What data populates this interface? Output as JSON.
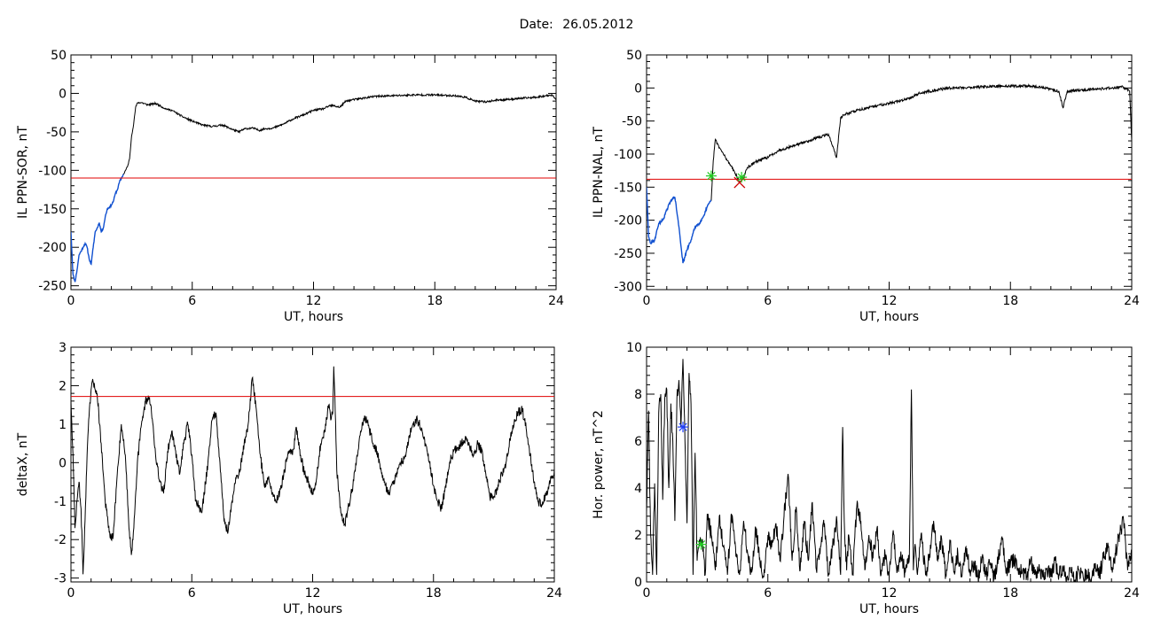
{
  "title": {
    "label": "Date:",
    "value": "26.05.2012"
  },
  "colors": {
    "main": "#000000",
    "early": "#1050d0",
    "threshold": "#e00000",
    "marker_green": "#22cc22",
    "marker_red": "#cc0000",
    "marker_blue": "#2040ff"
  },
  "chart_data": [
    {
      "id": "sor",
      "type": "line",
      "xlabel": "UT, hours",
      "ylabel": "IL PPN-SOR, nT",
      "xlim": [
        0,
        24
      ],
      "ylim": [
        -255,
        50
      ],
      "xticks": [
        "0",
        "6",
        "12",
        "18",
        "24"
      ],
      "yticks": [
        "50",
        "0",
        "-50",
        "-100",
        "-150",
        "-200",
        "-250"
      ],
      "threshold": -110,
      "highlight_until": 2.6,
      "noise": 1.2,
      "noise_seed": 11,
      "series": [
        {
          "x": [
            0,
            0.1,
            0.2,
            0.3,
            0.4,
            0.5,
            0.6,
            0.7,
            0.8,
            0.9,
            1.0,
            1.1,
            1.2,
            1.3,
            1.4,
            1.5,
            1.6,
            1.7,
            1.8,
            1.9,
            2.0,
            2.1,
            2.2,
            2.3,
            2.4,
            2.5,
            2.6,
            2.7,
            2.8,
            2.9,
            3.0,
            3.1,
            3.2,
            3.3,
            3.5,
            3.8,
            4.0,
            4.2,
            4.4,
            4.6,
            4.8,
            5.0,
            5.5,
            6.0,
            6.5,
            7.0,
            7.5,
            8.0,
            8.3,
            8.6,
            9.0,
            9.3,
            9.6,
            10.0,
            10.5,
            11.0,
            11.5,
            12.0,
            12.5,
            12.8,
            13.0,
            13.3,
            13.6,
            14.0,
            14.5,
            15.0,
            16.0,
            17.0,
            18.0,
            19.0,
            19.5,
            20.0,
            20.5,
            21.0,
            22.0,
            23.0,
            23.5,
            23.8,
            24.0
          ],
          "y": [
            -180,
            -235,
            -245,
            -230,
            -210,
            -205,
            -200,
            -195,
            -200,
            -215,
            -222,
            -200,
            -180,
            -175,
            -168,
            -180,
            -175,
            -160,
            -150,
            -148,
            -145,
            -140,
            -130,
            -125,
            -115,
            -110,
            -105,
            -100,
            -95,
            -85,
            -55,
            -40,
            -18,
            -12,
            -12,
            -15,
            -14,
            -13,
            -16,
            -19,
            -21,
            -22,
            -30,
            -36,
            -41,
            -43,
            -41,
            -47,
            -50,
            -46,
            -45,
            -48,
            -46,
            -45,
            -40,
            -33,
            -28,
            -22,
            -20,
            -16,
            -16,
            -18,
            -10,
            -8,
            -6,
            -4,
            -3,
            -2,
            -2,
            -3,
            -5,
            -10,
            -11,
            -9,
            -7,
            -5,
            -3,
            -2,
            -8
          ]
        }
      ]
    },
    {
      "id": "nal",
      "type": "line",
      "xlabel": "UT, hours",
      "ylabel": "IL PPN-NAL, nT",
      "xlim": [
        0,
        24
      ],
      "ylim": [
        -305,
        50
      ],
      "xticks": [
        "0",
        "6",
        "12",
        "18",
        "24"
      ],
      "yticks": [
        "50",
        "0",
        "-50",
        "-100",
        "-150",
        "-200",
        "-250",
        "-300"
      ],
      "threshold": -138,
      "highlight_until": 3.2,
      "noise": 2.0,
      "noise_seed": 29,
      "markers": [
        {
          "x": 3.2,
          "y": -133,
          "symbol": "asterisk",
          "color": "#22cc22"
        },
        {
          "x": 4.6,
          "y": -143,
          "symbol": "cross",
          "color": "#cc0000"
        },
        {
          "x": 4.7,
          "y": -135,
          "symbol": "asterisk",
          "color": "#22cc22"
        }
      ],
      "series": [
        {
          "x": [
            0,
            0.1,
            0.2,
            0.4,
            0.6,
            0.8,
            1.0,
            1.2,
            1.4,
            1.6,
            1.8,
            2.0,
            2.2,
            2.4,
            2.6,
            2.8,
            3.0,
            3.2,
            3.3,
            3.4,
            3.6,
            3.8,
            4.0,
            4.2,
            4.4,
            4.6,
            4.8,
            5.0,
            5.5,
            6.0,
            6.5,
            7.0,
            7.5,
            8.0,
            8.5,
            9.0,
            9.4,
            9.6,
            9.8,
            10.0,
            10.5,
            11.0,
            11.5,
            12.0,
            12.5,
            13.0,
            13.5,
            14.0,
            14.5,
            15.0,
            16.0,
            17.0,
            18.0,
            19.0,
            19.5,
            20.0,
            20.4,
            20.6,
            20.8,
            21.0,
            22.0,
            23.0,
            23.5,
            23.9,
            24.0
          ],
          "y": [
            -150,
            -225,
            -235,
            -230,
            -205,
            -200,
            -185,
            -170,
            -165,
            -210,
            -265,
            -245,
            -230,
            -210,
            -205,
            -195,
            -180,
            -170,
            -110,
            -78,
            -90,
            -100,
            -110,
            -118,
            -130,
            -143,
            -135,
            -120,
            -110,
            -105,
            -95,
            -90,
            -85,
            -80,
            -75,
            -70,
            -105,
            -45,
            -40,
            -38,
            -33,
            -30,
            -26,
            -23,
            -20,
            -15,
            -8,
            -5,
            -2,
            0,
            1,
            2,
            3,
            3,
            1,
            -2,
            -5,
            -30,
            -6,
            -4,
            -2,
            0,
            2,
            -5,
            -80
          ]
        }
      ]
    },
    {
      "id": "deltax",
      "type": "line",
      "xlabel": "UT, hours",
      "ylabel": "deltaX, nT",
      "xlim": [
        0,
        24
      ],
      "ylim": [
        -3.1,
        3.0
      ],
      "xticks": [
        "0",
        "6",
        "12",
        "18",
        "24"
      ],
      "yticks": [
        "3",
        "2",
        "1",
        "0",
        "-1",
        "-2",
        "-3"
      ],
      "threshold": 1.72,
      "noise": 0.12,
      "noise_seed": 47,
      "series": [
        {
          "x": [
            0,
            0.1,
            0.2,
            0.3,
            0.4,
            0.5,
            0.6,
            0.7,
            0.8,
            0.9,
            1.0,
            1.1,
            1.3,
            1.5,
            1.7,
            1.9,
            2.0,
            2.1,
            2.3,
            2.5,
            2.7,
            2.9,
            3.0,
            3.1,
            3.3,
            3.5,
            3.7,
            3.9,
            4.0,
            4.1,
            4.2,
            4.4,
            4.6,
            4.8,
            5.0,
            5.2,
            5.4,
            5.6,
            5.8,
            6.0,
            6.2,
            6.5,
            6.8,
            7.0,
            7.2,
            7.4,
            7.6,
            7.8,
            8.0,
            8.2,
            8.4,
            8.6,
            8.8,
            9.0,
            9.2,
            9.4,
            9.6,
            9.8,
            10.0,
            10.2,
            10.4,
            10.6,
            10.8,
            11.0,
            11.2,
            11.4,
            11.6,
            11.8,
            12.0,
            12.2,
            12.4,
            12.6,
            12.8,
            12.9,
            13.0,
            13.05,
            13.1,
            13.2,
            13.4,
            13.6,
            13.8,
            14.0,
            14.2,
            14.4,
            14.6,
            14.8,
            15.0,
            15.2,
            15.4,
            15.6,
            15.8,
            16.0,
            16.2,
            16.4,
            16.6,
            16.8,
            17.0,
            17.2,
            17.4,
            17.6,
            17.8,
            18.0,
            18.2,
            18.4,
            18.6,
            18.8,
            19.0,
            19.2,
            19.4,
            19.6,
            19.8,
            20.0,
            20.2,
            20.4,
            20.6,
            20.8,
            21.0,
            21.2,
            21.4,
            21.6,
            21.8,
            22.0,
            22.2,
            22.4,
            22.6,
            22.8,
            23.0,
            23.2,
            23.4,
            23.6,
            23.8,
            24.0
          ],
          "y": [
            1.6,
            0.2,
            -1.7,
            -1.0,
            -0.5,
            -1.2,
            -2.9,
            -1.5,
            0.2,
            1.2,
            1.9,
            2.1,
            1.8,
            0.5,
            -1.0,
            -1.8,
            -2.0,
            -1.9,
            -0.3,
            1.0,
            0.2,
            -1.8,
            -2.4,
            -1.8,
            0.0,
            1.0,
            1.6,
            1.7,
            1.3,
            0.8,
            0.2,
            -0.5,
            -0.8,
            0.3,
            0.8,
            0.3,
            -0.3,
            0.5,
            1.0,
            0.2,
            -1.0,
            -1.3,
            0.0,
            1.1,
            1.3,
            0.0,
            -1.5,
            -1.8,
            -1.0,
            -0.4,
            -0.2,
            0.5,
            1.0,
            2.2,
            1.4,
            0.2,
            -0.6,
            -0.4,
            -0.8,
            -1.0,
            -0.7,
            -0.2,
            0.3,
            0.2,
            0.9,
            0.2,
            -0.3,
            -0.5,
            -0.8,
            -0.4,
            0.5,
            0.8,
            1.5,
            1.1,
            1.3,
            2.5,
            1.8,
            -0.2,
            -1.3,
            -1.6,
            -1.1,
            -0.6,
            0.2,
            0.8,
            1.2,
            0.9,
            0.5,
            0.3,
            -0.2,
            -0.6,
            -0.8,
            -0.5,
            -0.3,
            0.0,
            0.2,
            0.7,
            1.0,
            1.1,
            0.9,
            0.5,
            0.0,
            -0.6,
            -1.0,
            -1.2,
            -0.6,
            0.0,
            0.3,
            0.4,
            0.5,
            0.6,
            0.4,
            0.2,
            0.5,
            0.3,
            -0.3,
            -0.9,
            -0.9,
            -0.6,
            -0.3,
            0.0,
            0.6,
            1.0,
            1.3,
            1.4,
            0.9,
            0.2,
            -0.5,
            -1.0,
            -1.1,
            -0.8,
            -0.5,
            -0.2
          ]
        }
      ]
    },
    {
      "id": "power",
      "type": "line",
      "xlabel": "UT, hours",
      "ylabel": "Hor. power, nT^2",
      "xlim": [
        0,
        24
      ],
      "ylim": [
        0,
        10
      ],
      "xticks": [
        "0",
        "6",
        "12",
        "18",
        "24"
      ],
      "yticks": [
        "10",
        "8",
        "6",
        "4",
        "2",
        "0"
      ],
      "noise": 0.35,
      "noise_seed": 83,
      "markers": [
        {
          "x": 1.8,
          "y": 6.6,
          "symbol": "asterisk",
          "color": "#2040ff"
        },
        {
          "x": 2.7,
          "y": 1.6,
          "symbol": "asterisk",
          "color": "#22cc22"
        }
      ],
      "series": [
        {
          "x": [
            0,
            0.1,
            0.2,
            0.3,
            0.4,
            0.5,
            0.6,
            0.7,
            0.8,
            0.9,
            1.0,
            1.1,
            1.2,
            1.3,
            1.4,
            1.5,
            1.6,
            1.7,
            1.8,
            1.9,
            2.0,
            2.1,
            2.2,
            2.3,
            2.4,
            2.5,
            2.6,
            2.7,
            2.8,
            2.9,
            3.0,
            3.2,
            3.4,
            3.6,
            3.8,
            4.0,
            4.2,
            4.4,
            4.6,
            4.8,
            5.0,
            5.2,
            5.4,
            5.6,
            5.8,
            6.0,
            6.2,
            6.4,
            6.6,
            6.8,
            7.0,
            7.2,
            7.4,
            7.6,
            7.8,
            8.0,
            8.2,
            8.4,
            8.6,
            8.8,
            9.0,
            9.2,
            9.4,
            9.6,
            9.7,
            9.8,
            9.9,
            10.0,
            10.2,
            10.4,
            10.6,
            10.8,
            11.0,
            11.2,
            11.4,
            11.6,
            11.8,
            12.0,
            12.2,
            12.4,
            12.6,
            12.8,
            13.0,
            13.1,
            13.2,
            13.3,
            13.4,
            13.6,
            13.8,
            14.0,
            14.2,
            14.4,
            14.6,
            14.8,
            15.0,
            15.2,
            15.4,
            15.6,
            15.8,
            16.0,
            16.2,
            16.4,
            16.6,
            16.8,
            17.0,
            17.2,
            17.4,
            17.6,
            17.8,
            18.0,
            18.2,
            18.4,
            18.6,
            18.8,
            19.0,
            19.2,
            19.4,
            19.6,
            19.8,
            20.0,
            20.2,
            20.4,
            20.6,
            20.8,
            21.0,
            21.2,
            21.4,
            21.6,
            21.8,
            22.0,
            22.2,
            22.4,
            22.6,
            22.8,
            23.0,
            23.2,
            23.4,
            23.6,
            23.8,
            24.0
          ],
          "y": [
            3.0,
            7.3,
            2.0,
            0.3,
            4.2,
            0.3,
            7.2,
            8.0,
            3.5,
            7.8,
            8.2,
            4.0,
            7.6,
            6.0,
            2.6,
            7.8,
            8.6,
            6.6,
            9.5,
            6.0,
            2.5,
            8.9,
            7.6,
            0.3,
            5.5,
            0.9,
            1.6,
            1.8,
            1.5,
            0.3,
            2.9,
            2.0,
            0.5,
            2.8,
            1.5,
            0.3,
            2.9,
            1.5,
            0.3,
            2.6,
            1.2,
            0.4,
            2.3,
            1.0,
            0.2,
            2.0,
            1.6,
            2.5,
            0.9,
            2.8,
            4.6,
            0.9,
            3.2,
            0.5,
            2.6,
            0.9,
            3.4,
            0.5,
            1.5,
            2.5,
            0.3,
            1.5,
            2.8,
            0.3,
            6.6,
            2.0,
            0.5,
            2.0,
            0.3,
            3.2,
            2.6,
            0.5,
            2.0,
            1.0,
            2.3,
            0.3,
            1.2,
            0.3,
            2.2,
            0.5,
            1.0,
            0.4,
            1.0,
            8.2,
            0.5,
            1.5,
            0.3,
            2.1,
            0.3,
            1.2,
            2.6,
            0.9,
            1.8,
            0.3,
            1.8,
            0.4,
            1.2,
            0.2,
            1.5,
            0.4,
            0.8,
            0.2,
            1.0,
            0.3,
            0.8,
            0.1,
            1.0,
            1.8,
            0.4,
            0.8,
            1.0,
            0.3,
            0.5,
            0.2,
            0.9,
            0.3,
            0.5,
            0.2,
            0.6,
            0.2,
            0.9,
            0.3,
            0.6,
            0.2,
            0.4,
            0.1,
            0.5,
            0.2,
            0.3,
            0.1,
            0.8,
            0.3,
            1.0,
            1.5,
            0.5,
            1.2,
            2.1,
            2.6,
            0.5,
            1.4
          ]
        }
      ]
    }
  ]
}
